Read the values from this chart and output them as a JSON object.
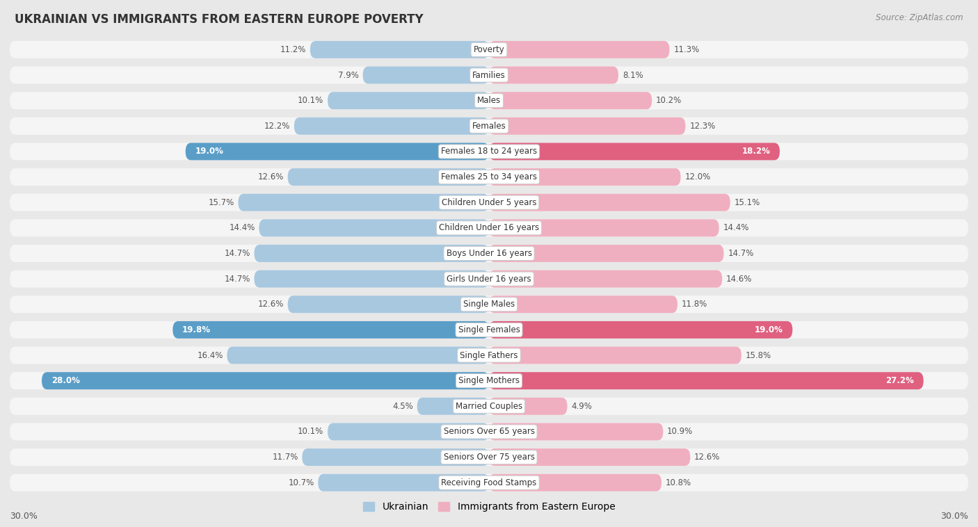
{
  "title": "UKRAINIAN VS IMMIGRANTS FROM EASTERN EUROPE POVERTY",
  "source": "Source: ZipAtlas.com",
  "categories": [
    "Poverty",
    "Families",
    "Males",
    "Females",
    "Females 18 to 24 years",
    "Females 25 to 34 years",
    "Children Under 5 years",
    "Children Under 16 years",
    "Boys Under 16 years",
    "Girls Under 16 years",
    "Single Males",
    "Single Females",
    "Single Fathers",
    "Single Mothers",
    "Married Couples",
    "Seniors Over 65 years",
    "Seniors Over 75 years",
    "Receiving Food Stamps"
  ],
  "ukrainian": [
    11.2,
    7.9,
    10.1,
    12.2,
    19.0,
    12.6,
    15.7,
    14.4,
    14.7,
    14.7,
    12.6,
    19.8,
    16.4,
    28.0,
    4.5,
    10.1,
    11.7,
    10.7
  ],
  "immigrants": [
    11.3,
    8.1,
    10.2,
    12.3,
    18.2,
    12.0,
    15.1,
    14.4,
    14.7,
    14.6,
    11.8,
    19.0,
    15.8,
    27.2,
    4.9,
    10.9,
    12.6,
    10.8
  ],
  "ukrainian_color_normal": "#a8c8e0",
  "immigrants_color_normal": "#f0afc0",
  "ukrainian_color_highlight": "#5a9ec8",
  "immigrants_color_highlight": "#e06080",
  "highlight_rows": [
    4,
    11,
    13
  ],
  "background_color": "#e8e8e8",
  "row_bg_color": "#f5f5f5",
  "xlim": 30.0,
  "legend_ukrainian": "Ukrainian",
  "legend_immigrants": "Immigrants from Eastern Europe"
}
